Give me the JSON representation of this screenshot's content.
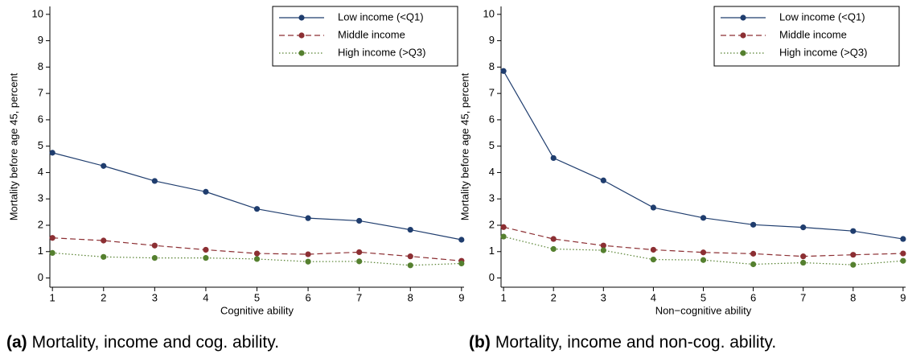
{
  "chart_data": [
    {
      "type": "line",
      "caption_tag": "(a)",
      "caption": "Mortality, income and cog. ability.",
      "xlabel": "Cognitive ability",
      "ylabel": "Mortality before age 45, percent",
      "x": [
        1,
        2,
        3,
        4,
        5,
        6,
        7,
        8,
        9
      ],
      "xlim": [
        0.95,
        9.05
      ],
      "xticks": [
        1,
        2,
        3,
        4,
        5,
        6,
        7,
        8,
        9
      ],
      "ylim": [
        -0.35,
        10.3
      ],
      "yticks": [
        0,
        1,
        2,
        3,
        4,
        5,
        6,
        7,
        8,
        9,
        10
      ],
      "grid": false,
      "legend": "upper right",
      "series": [
        {
          "name": "Low income (<Q1)",
          "color": "#1f3d6e",
          "style": "solid",
          "values": [
            4.75,
            4.25,
            3.68,
            3.27,
            2.62,
            2.27,
            2.17,
            1.83,
            1.45
          ]
        },
        {
          "name": "Middle income",
          "color": "#8c2f33",
          "style": "dashed",
          "values": [
            1.52,
            1.42,
            1.23,
            1.07,
            0.93,
            0.9,
            0.98,
            0.82,
            0.65
          ]
        },
        {
          "name": "High income (>Q3)",
          "color": "#55802f",
          "style": "dotted",
          "values": [
            0.95,
            0.8,
            0.76,
            0.76,
            0.72,
            0.62,
            0.63,
            0.48,
            0.55
          ]
        }
      ]
    },
    {
      "type": "line",
      "caption_tag": "(b)",
      "caption": "Mortality, income and non-cog. ability.",
      "xlabel": "Non−cognitive ability",
      "ylabel": "Mortality before age 45, percent",
      "x": [
        1,
        2,
        3,
        4,
        5,
        6,
        7,
        8,
        9
      ],
      "xlim": [
        0.95,
        9.05
      ],
      "xticks": [
        1,
        2,
        3,
        4,
        5,
        6,
        7,
        8,
        9
      ],
      "ylim": [
        -0.35,
        10.3
      ],
      "yticks": [
        0,
        1,
        2,
        3,
        4,
        5,
        6,
        7,
        8,
        9,
        10
      ],
      "grid": false,
      "legend": "upper right",
      "series": [
        {
          "name": "Low income (<Q1)",
          "color": "#1f3d6e",
          "style": "solid",
          "values": [
            7.85,
            4.55,
            3.7,
            2.67,
            2.28,
            2.02,
            1.92,
            1.78,
            1.48
          ]
        },
        {
          "name": "Middle income",
          "color": "#8c2f33",
          "style": "dashed",
          "values": [
            1.93,
            1.48,
            1.23,
            1.07,
            0.97,
            0.92,
            0.82,
            0.88,
            0.93
          ]
        },
        {
          "name": "High income (>Q3)",
          "color": "#55802f",
          "style": "dotted",
          "values": [
            1.57,
            1.1,
            1.05,
            0.7,
            0.68,
            0.52,
            0.58,
            0.5,
            0.65
          ]
        }
      ]
    }
  ]
}
